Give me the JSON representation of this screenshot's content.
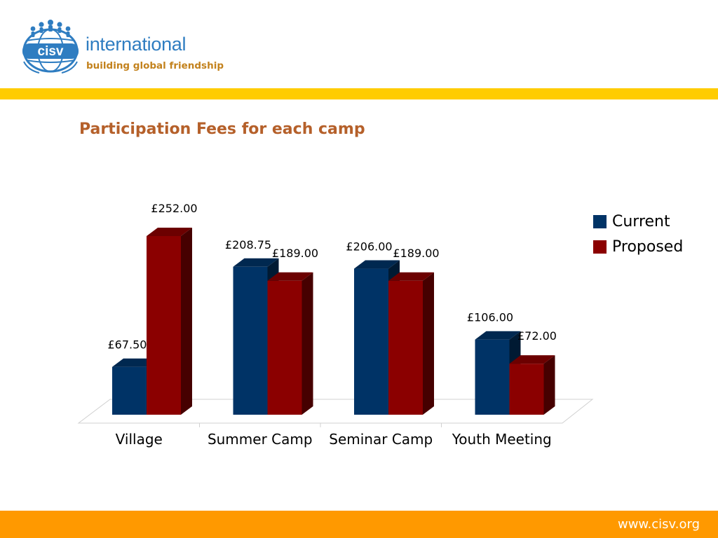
{
  "logo": {
    "wordmark": "international",
    "tagline": "building global friendship",
    "badge_text": "cisv"
  },
  "title": "Participation Fees for each camp",
  "chart_data": {
    "type": "bar",
    "title": "Participation Fees for each camp",
    "categories": [
      "Village",
      "Summer Camp",
      "Seminar Camp",
      "Youth Meeting"
    ],
    "series": [
      {
        "name": "Current",
        "color": "#003366",
        "values": [
          67.5,
          208.75,
          206.0,
          106.0
        ],
        "labels": [
          "£67.50",
          "£208.75",
          "£206.00",
          "£106.00"
        ]
      },
      {
        "name": "Proposed",
        "color": "#8b0000",
        "values": [
          252.0,
          189.0,
          189.0,
          72.0
        ],
        "labels": [
          "£252.00",
          "£189.00",
          "£189.00",
          "£72.00"
        ]
      }
    ],
    "ylim": [
      0,
      252
    ],
    "grid": false,
    "legend": "right",
    "style": "3d-column"
  },
  "footer": {
    "url": "www.cisv.org"
  },
  "colors": {
    "top_bar": "#ffcc00",
    "bottom_bar": "#ff9900",
    "title": "#b5602a",
    "logo_blue": "#2f7dc1"
  }
}
